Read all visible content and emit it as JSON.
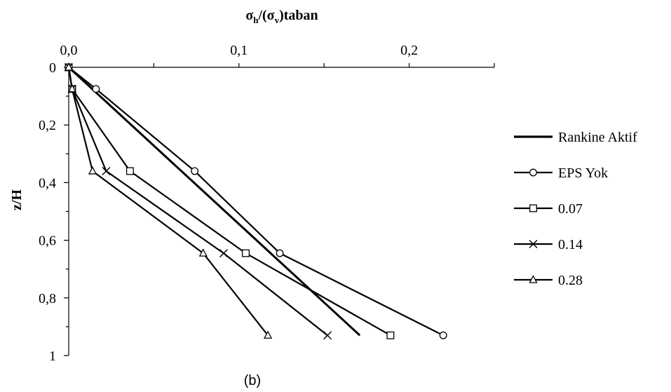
{
  "chart_data": {
    "type": "line",
    "title": "",
    "xlabel": "σh/(σv)taban",
    "xlabel_parts": {
      "main": "σ",
      "sub1": "h",
      "mid": "/(σ",
      "sub2": "v",
      "tail": ")taban"
    },
    "ylabel": "z/H",
    "caption": "(b)",
    "x_axis_position": "top",
    "y_axis_inverted": true,
    "xlim": [
      0,
      0.25
    ],
    "ylim": [
      0,
      1
    ],
    "x_ticks": [
      0,
      0.1,
      0.2
    ],
    "x_tick_labels": [
      "0,0",
      "0,1",
      "0,2"
    ],
    "y_ticks": [
      0,
      0.2,
      0.4,
      0.6,
      0.8,
      1
    ],
    "y_tick_labels": [
      "0",
      "0,2",
      "0,4",
      "0,6",
      "0,8",
      "1"
    ],
    "grid": false,
    "legend_position": "right",
    "series": [
      {
        "name": "Rankine Aktif",
        "marker": "none",
        "color": "#000000",
        "x": [
          0,
          0.171
        ],
        "y": [
          0,
          0.93
        ]
      },
      {
        "name": "EPS Yok",
        "marker": "circle",
        "color": "#000000",
        "x": [
          0,
          0.016,
          0.074,
          0.124,
          0.22
        ],
        "y": [
          0,
          0.075,
          0.36,
          0.645,
          0.93
        ]
      },
      {
        "name": "0.07",
        "marker": "square",
        "color": "#000000",
        "x": [
          0,
          0.002,
          0.036,
          0.104,
          0.189
        ],
        "y": [
          0,
          0.075,
          0.36,
          0.645,
          0.93
        ]
      },
      {
        "name": "0.14",
        "marker": "x",
        "color": "#000000",
        "x": [
          0,
          0.002,
          0.022,
          0.091,
          0.152
        ],
        "y": [
          0,
          0.075,
          0.36,
          0.645,
          0.93
        ]
      },
      {
        "name": "0.28",
        "marker": "triangle",
        "color": "#000000",
        "x": [
          0,
          0.002,
          0.014,
          0.079,
          0.117
        ],
        "y": [
          0,
          0.075,
          0.36,
          0.645,
          0.93
        ]
      }
    ]
  }
}
